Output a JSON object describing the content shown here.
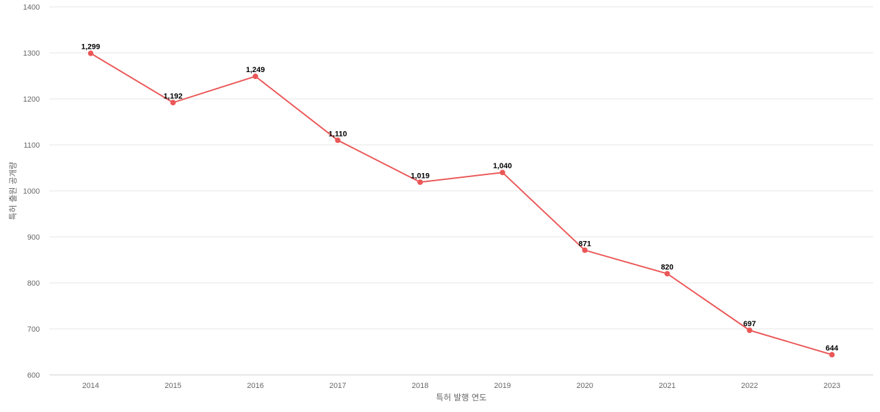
{
  "chart_data": {
    "type": "line",
    "x": [
      "2014",
      "2015",
      "2016",
      "2017",
      "2018",
      "2019",
      "2020",
      "2021",
      "2022",
      "2023"
    ],
    "series": [
      {
        "values": [
          1299,
          1192,
          1249,
          1110,
          1019,
          1040,
          871,
          820,
          697,
          644
        ],
        "labels": [
          "1,299",
          "1,192",
          "1,249",
          "1,110",
          "1,019",
          "1,040",
          "871",
          "820",
          "697",
          "644"
        ],
        "color": "#eb5757"
      }
    ],
    "xlabel": "특허 발행 연도",
    "ylabel": "특허 출원 공개량",
    "ylim": [
      600,
      1400
    ],
    "yticks": [
      600,
      700,
      800,
      900,
      1000,
      1100,
      1200,
      1300,
      1400
    ],
    "grid": true,
    "legend": "none"
  }
}
